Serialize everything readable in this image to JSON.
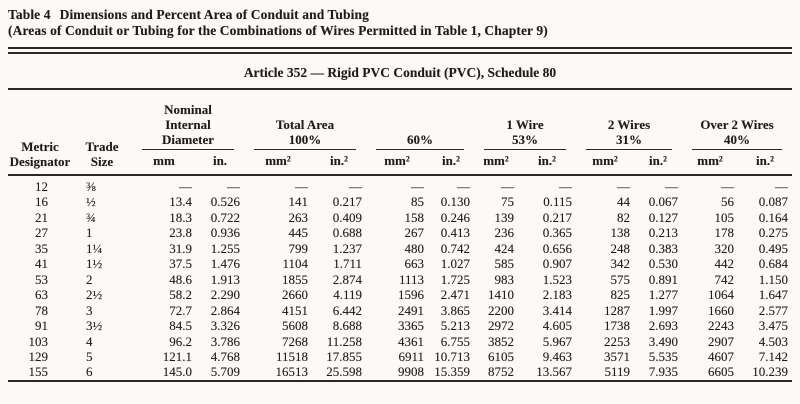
{
  "page": {
    "title_label": "Table 4",
    "title": "Dimensions and Percent Area of Conduit and Tubing",
    "title_note": "(Areas of Conduit or Tubing for the Combinations of Wires Permitted in Table 1, Chapter 9)"
  },
  "table": {
    "caption": "Article 352 — Rigid PVC Conduit (PVC), Schedule 80",
    "columns": {
      "metric": "Metric\nDesignator",
      "trade": "Trade\nSize",
      "groups": [
        {
          "label": "Nominal\nInternal\nDiameter",
          "units": [
            "mm",
            "in."
          ]
        },
        {
          "label": "Total Area\n100%",
          "units": [
            "mm²",
            "in.²"
          ]
        },
        {
          "label": "60%",
          "units": [
            "mm²",
            "in.²"
          ]
        },
        {
          "label": "1 Wire\n53%",
          "units": [
            "mm²",
            "in.²"
          ]
        },
        {
          "label": "2 Wires\n31%",
          "units": [
            "mm²",
            "in.²"
          ]
        },
        {
          "label": "Over 2 Wires\n40%",
          "units": [
            "mm²",
            "in.²"
          ]
        }
      ]
    },
    "rows": [
      [
        "12",
        "⅜",
        "—",
        "—",
        "—",
        "—",
        "—",
        "—",
        "—",
        "—",
        "—",
        "—",
        "—",
        "—"
      ],
      [
        "16",
        "½",
        "13.4",
        "0.526",
        "141",
        "0.217",
        "85",
        "0.130",
        "75",
        "0.115",
        "44",
        "0.067",
        "56",
        "0.087"
      ],
      [
        "21",
        "¾",
        "18.3",
        "0.722",
        "263",
        "0.409",
        "158",
        "0.246",
        "139",
        "0.217",
        "82",
        "0.127",
        "105",
        "0.164"
      ],
      [
        "27",
        "1",
        "23.8",
        "0.936",
        "445",
        "0.688",
        "267",
        "0.413",
        "236",
        "0.365",
        "138",
        "0.213",
        "178",
        "0.275"
      ],
      [
        "35",
        "1¼",
        "31.9",
        "1.255",
        "799",
        "1.237",
        "480",
        "0.742",
        "424",
        "0.656",
        "248",
        "0.383",
        "320",
        "0.495"
      ],
      [
        "41",
        "1½",
        "37.5",
        "1.476",
        "1104",
        "1.711",
        "663",
        "1.027",
        "585",
        "0.907",
        "342",
        "0.530",
        "442",
        "0.684"
      ],
      [
        "53",
        "2",
        "48.6",
        "1.913",
        "1855",
        "2.874",
        "1113",
        "1.725",
        "983",
        "1.523",
        "575",
        "0.891",
        "742",
        "1.150"
      ],
      [
        "63",
        "2½",
        "58.2",
        "2.290",
        "2660",
        "4.119",
        "1596",
        "2.471",
        "1410",
        "2.183",
        "825",
        "1.277",
        "1064",
        "1.647"
      ],
      [
        "78",
        "3",
        "72.7",
        "2.864",
        "4151",
        "6.442",
        "2491",
        "3.865",
        "2200",
        "3.414",
        "1287",
        "1.997",
        "1660",
        "2.577"
      ],
      [
        "91",
        "3½",
        "84.5",
        "3.326",
        "5608",
        "8.688",
        "3365",
        "5.213",
        "2972",
        "4.605",
        "1738",
        "2.693",
        "2243",
        "3.475"
      ],
      [
        "103",
        "4",
        "96.2",
        "3.786",
        "7268",
        "11.258",
        "4361",
        "6.755",
        "3852",
        "5.967",
        "2253",
        "3.490",
        "2907",
        "4.503"
      ],
      [
        "129",
        "5",
        "121.1",
        "4.768",
        "11518",
        "17.855",
        "6911",
        "10.713",
        "6105",
        "9.463",
        "3571",
        "5.535",
        "4607",
        "7.142"
      ],
      [
        "155",
        "6",
        "145.0",
        "5.709",
        "16513",
        "25.598",
        "9908",
        "15.359",
        "8752",
        "13.567",
        "5119",
        "7.935",
        "6605",
        "10.239"
      ]
    ]
  },
  "colors": {
    "background": "#fbfaf6",
    "text": "#1e1b18",
    "rule": "#2b2723"
  }
}
